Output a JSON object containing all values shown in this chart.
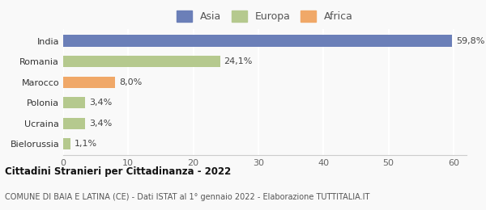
{
  "categories": [
    "Bielorussia",
    "Ucraina",
    "Polonia",
    "Marocco",
    "Romania",
    "India"
  ],
  "values": [
    1.1,
    3.4,
    3.4,
    8.0,
    24.1,
    59.8
  ],
  "labels": [
    "1,1%",
    "3,4%",
    "3,4%",
    "8,0%",
    "24,1%",
    "59,8%"
  ],
  "colors": [
    "#b5c98e",
    "#b5c98e",
    "#b5c98e",
    "#f0a868",
    "#b5c98e",
    "#6b7fb8"
  ],
  "legend": [
    {
      "label": "Asia",
      "color": "#6b7fb8"
    },
    {
      "label": "Europa",
      "color": "#b5c98e"
    },
    {
      "label": "Africa",
      "color": "#f0a868"
    }
  ],
  "xlim": [
    0,
    62
  ],
  "xticks": [
    0,
    10,
    20,
    30,
    40,
    50,
    60
  ],
  "title": "Cittadini Stranieri per Cittadinanza - 2022",
  "subtitle": "COMUNE DI BAIA E LATINA (CE) - Dati ISTAT al 1° gennaio 2022 - Elaborazione TUTTITALIA.IT",
  "background_color": "#f9f9f9",
  "bar_height": 0.55
}
